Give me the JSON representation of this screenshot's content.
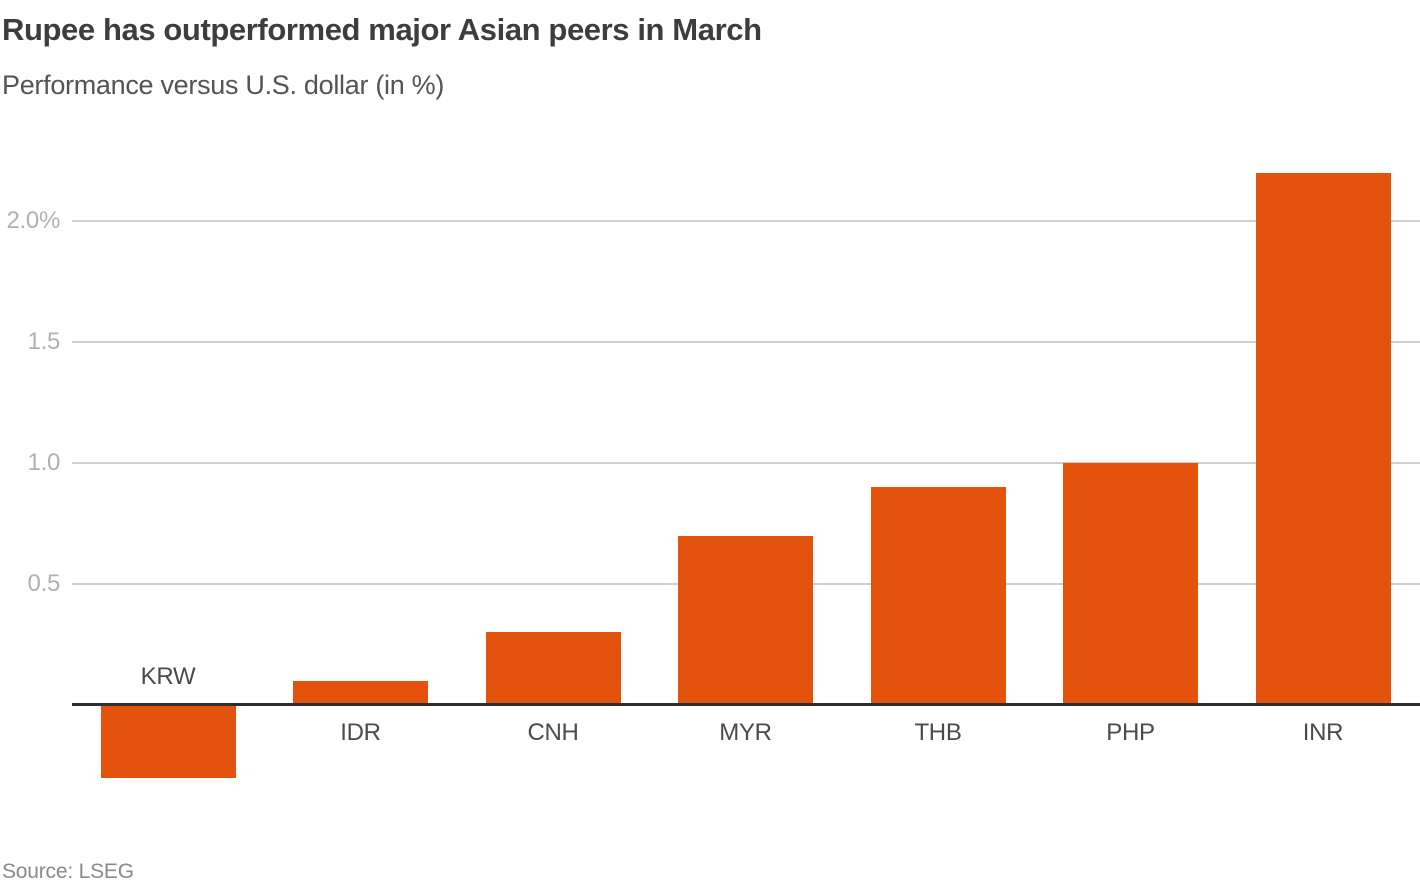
{
  "chart_data": {
    "type": "bar",
    "title": "Rupee has outperformed major Asian peers in March",
    "subtitle": "Performance versus U.S. dollar (in %)",
    "categories": [
      "KRW",
      "IDR",
      "CNH",
      "MYR",
      "THB",
      "PHP",
      "INR"
    ],
    "values": [
      -0.3,
      0.1,
      0.3,
      0.7,
      0.9,
      1.0,
      2.2
    ],
    "unit": "%",
    "yticks": [
      {
        "value": 0.5,
        "label": "0.5"
      },
      {
        "value": 1.0,
        "label": "1.0"
      },
      {
        "value": 1.5,
        "label": "1.5"
      },
      {
        "value": 2.0,
        "label": "2.0%"
      }
    ],
    "ylim": [
      -0.45,
      2.3
    ],
    "grid": "horizontal",
    "legend": "none",
    "source": "Source: LSEG",
    "colors": {
      "bar": "#e4530d",
      "axis_line": "#2e2e2e",
      "gridline": "#cfcfcf",
      "tick_label": "#b1b1b1",
      "category_label": "#4b4b4b",
      "title": "#3d3d3d",
      "subtitle": "#545454",
      "source": "#8a8a8a",
      "background": "#ffffff"
    }
  }
}
